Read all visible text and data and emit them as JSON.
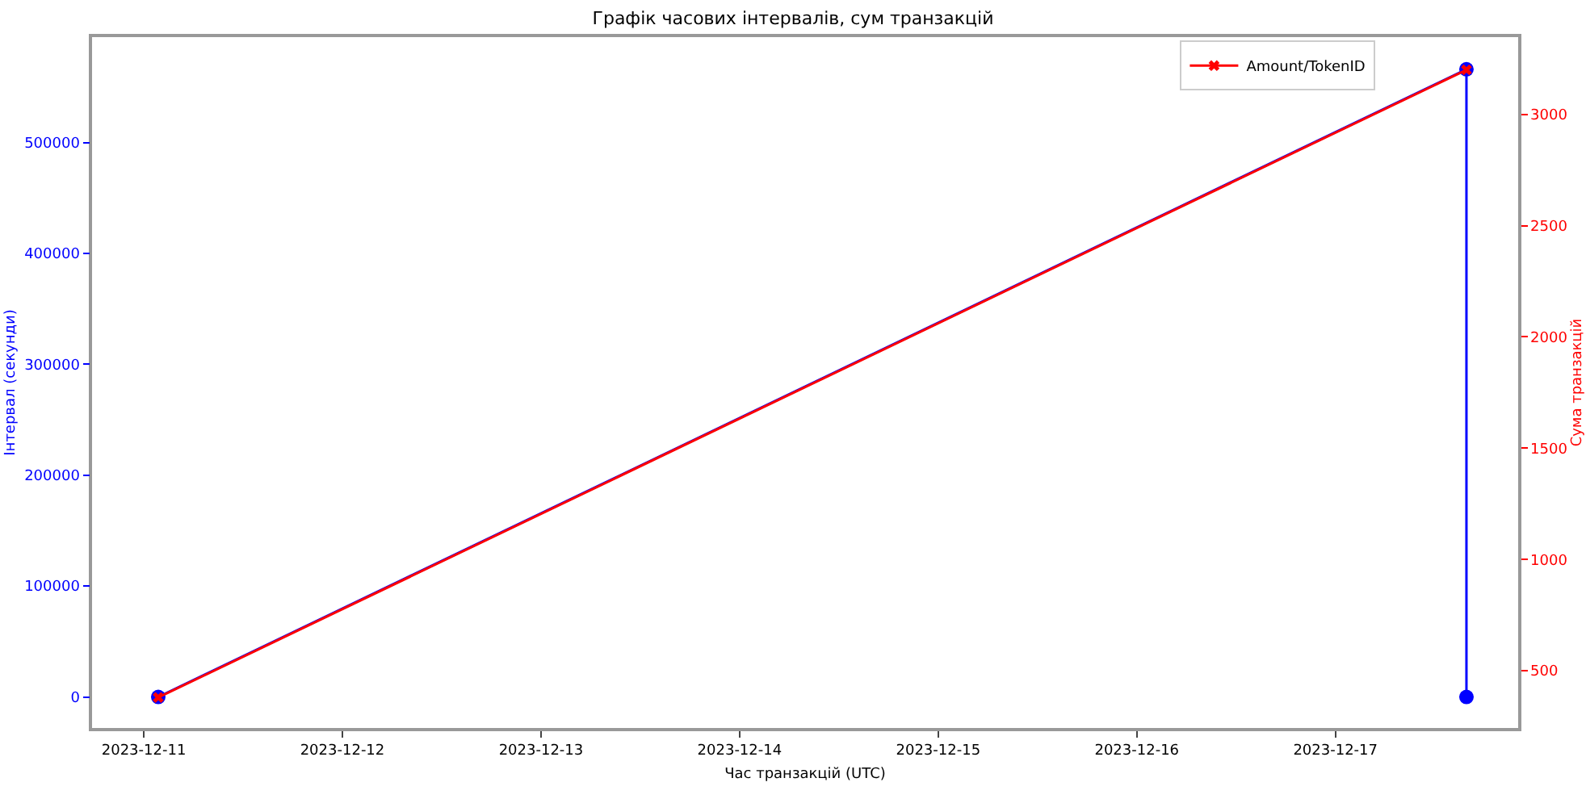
{
  "chart_data": {
    "type": "line",
    "title": "Графік часових інтервалів, сум транзакцій",
    "xlabel": "Час транзакцій (UTC)",
    "ylabel": "Інтервал (секунди)",
    "y2label": "Сума транзакцій",
    "series": [
      {
        "color": "#0000ff",
        "marker": "circle",
        "x": [
          "2023-12-11T01:45",
          "2023-12-17T15:50",
          "2023-12-17T15:50"
        ],
        "values": [
          0,
          566000,
          0
        ]
      },
      {
        "name": "Amount/TokenID",
        "color": "#ff0000",
        "marker": "cross",
        "axis": "y2",
        "x": [
          "2023-12-11T01:45",
          "2023-12-17T15:50"
        ],
        "values": [
          380,
          3200
        ]
      }
    ],
    "xlim": [
      "2023-12-10T17:45",
      "2023-12-17T22:05"
    ],
    "xticks": [
      "2023-12-11",
      "2023-12-12",
      "2023-12-13",
      "2023-12-14",
      "2023-12-15",
      "2023-12-16",
      "2023-12-17"
    ],
    "ylim": [
      -28000,
      595000
    ],
    "yticks": [
      0,
      100000,
      200000,
      300000,
      400000,
      500000
    ],
    "y2lim": [
      243,
      3347
    ],
    "y2ticks": [
      500,
      1000,
      1500,
      2000,
      2500,
      3000
    ],
    "grid": false,
    "legend": "top right",
    "line_style": "solid"
  }
}
